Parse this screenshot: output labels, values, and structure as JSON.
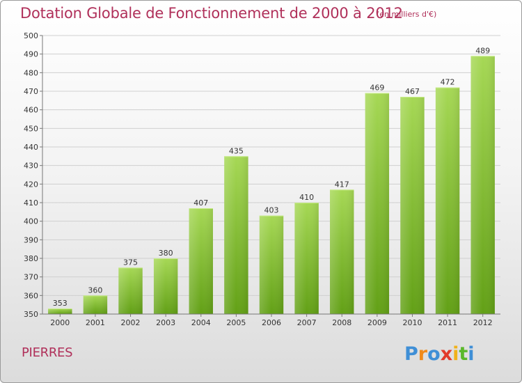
{
  "header": {
    "title": "Dotation Globale de Fonctionnement de 2000 à 2012",
    "unit": "(en milliers d'€)"
  },
  "footer": {
    "commune": "PIERRES",
    "logo_text": "Proxiti"
  },
  "colors": {
    "accent": "#b0305a",
    "bar_light": "#9fd34e",
    "bar_dark": "#64a019",
    "grid": "#cfcfcf"
  },
  "chart_data": {
    "type": "bar",
    "title": "Dotation Globale de Fonctionnement de 2000 à 2012",
    "subtitle": "(en milliers d'€)",
    "xlabel": "",
    "ylabel": "",
    "categories": [
      "2000",
      "2001",
      "2002",
      "2003",
      "2004",
      "2005",
      "2006",
      "2007",
      "2008",
      "2009",
      "2010",
      "2011",
      "2012"
    ],
    "values": [
      353,
      360,
      375,
      380,
      407,
      435,
      403,
      410,
      417,
      469,
      467,
      472,
      489
    ],
    "ylim": [
      350,
      500
    ],
    "yticks": [
      350,
      360,
      370,
      380,
      390,
      400,
      410,
      420,
      430,
      440,
      450,
      460,
      470,
      480,
      490,
      500
    ],
    "grid": true,
    "data_labels": true
  }
}
